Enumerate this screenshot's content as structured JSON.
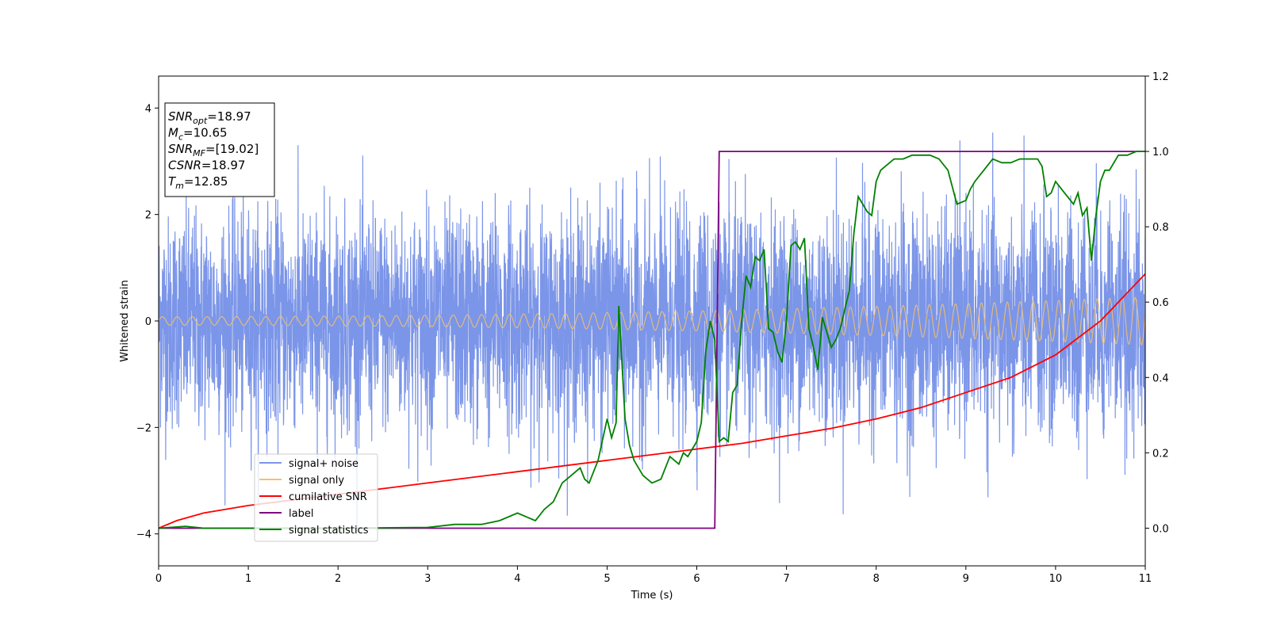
{
  "chart_data": {
    "type": "line",
    "xlabel": "Time (s)",
    "ylabel": "Whitened strain",
    "xlim": [
      0,
      11
    ],
    "ylim": [
      -4.6,
      4.6
    ],
    "y2lim": [
      -0.1,
      1.2
    ],
    "xticks": [
      "0",
      "1",
      "2",
      "3",
      "4",
      "5",
      "6",
      "7",
      "8",
      "9",
      "10",
      "11"
    ],
    "yticks": [
      "−4",
      "−2",
      "0",
      "2",
      "4"
    ],
    "y2ticks": [
      "0.0",
      "0.2",
      "0.4",
      "0.6",
      "0.8",
      "1.0",
      "1.2"
    ],
    "grid": false,
    "legend_position": "lower-left",
    "colors": {
      "signal_noise": "#7b95e8",
      "signal_only": "#f5c16c",
      "cumulative_snr": "#ff0000",
      "label": "#800080",
      "signal_statistics": "#008000"
    },
    "series": [
      {
        "name": "signal+ noise",
        "axis": "left",
        "note_style": "noise",
        "amplitude_sigma": 1.0,
        "peak_max": 4.18
      },
      {
        "name": "signal only",
        "axis": "left",
        "note_style": "chirp",
        "amplitude_start": 0.08,
        "amplitude_end": 0.45
      },
      {
        "name": "cumilative SNR",
        "axis": "right",
        "x": [
          0,
          0.2,
          0.5,
          1,
          2,
          3,
          4,
          5,
          6,
          6.5,
          7,
          7.5,
          8,
          8.5,
          9,
          9.5,
          10,
          10.5,
          11
        ],
        "y": [
          0.0,
          0.02,
          0.04,
          0.06,
          0.09,
          0.12,
          0.15,
          0.18,
          0.21,
          0.225,
          0.245,
          0.265,
          0.29,
          0.32,
          0.36,
          0.4,
          0.46,
          0.55,
          0.675
        ]
      },
      {
        "name": "label",
        "axis": "right",
        "x": [
          0,
          6.2,
          6.25,
          11
        ],
        "y": [
          0.0,
          0.0,
          1.0,
          1.0
        ]
      },
      {
        "name": "signal statistics",
        "axis": "right",
        "x": [
          0,
          0.3,
          0.5,
          1,
          2,
          3,
          3.3,
          3.6,
          3.8,
          4.0,
          4.1,
          4.2,
          4.3,
          4.4,
          4.5,
          4.6,
          4.7,
          4.75,
          4.8,
          4.9,
          5.0,
          5.05,
          5.1,
          5.13,
          5.2,
          5.25,
          5.3,
          5.4,
          5.5,
          5.6,
          5.7,
          5.8,
          5.85,
          5.9,
          6.0,
          6.05,
          6.1,
          6.15,
          6.2,
          6.25,
          6.3,
          6.35,
          6.4,
          6.45,
          6.5,
          6.55,
          6.6,
          6.65,
          6.7,
          6.75,
          6.8,
          6.85,
          6.9,
          6.95,
          7.0,
          7.05,
          7.1,
          7.15,
          7.2,
          7.25,
          7.3,
          7.35,
          7.4,
          7.45,
          7.5,
          7.55,
          7.6,
          7.65,
          7.7,
          7.75,
          7.8,
          7.85,
          7.9,
          7.95,
          8.0,
          8.05,
          8.1,
          8.2,
          8.3,
          8.4,
          8.5,
          8.6,
          8.7,
          8.8,
          8.9,
          9.0,
          9.05,
          9.1,
          9.2,
          9.3,
          9.4,
          9.5,
          9.6,
          9.7,
          9.8,
          9.85,
          9.9,
          9.95,
          10.0,
          10.1,
          10.2,
          10.25,
          10.3,
          10.35,
          10.4,
          10.45,
          10.5,
          10.55,
          10.6,
          10.7,
          10.8,
          10.9,
          11.0
        ],
        "y": [
          0.0,
          0.005,
          0.0,
          0.0,
          0.0,
          0.002,
          0.01,
          0.01,
          0.02,
          0.04,
          0.03,
          0.02,
          0.05,
          0.07,
          0.12,
          0.14,
          0.16,
          0.13,
          0.12,
          0.18,
          0.29,
          0.24,
          0.28,
          0.59,
          0.29,
          0.22,
          0.18,
          0.14,
          0.12,
          0.13,
          0.19,
          0.17,
          0.2,
          0.19,
          0.23,
          0.28,
          0.47,
          0.55,
          0.5,
          0.23,
          0.24,
          0.23,
          0.36,
          0.38,
          0.55,
          0.67,
          0.64,
          0.72,
          0.71,
          0.74,
          0.53,
          0.52,
          0.47,
          0.44,
          0.55,
          0.75,
          0.76,
          0.74,
          0.77,
          0.53,
          0.48,
          0.42,
          0.56,
          0.52,
          0.48,
          0.5,
          0.53,
          0.58,
          0.63,
          0.78,
          0.88,
          0.86,
          0.84,
          0.83,
          0.92,
          0.95,
          0.96,
          0.98,
          0.98,
          0.99,
          0.99,
          0.99,
          0.98,
          0.95,
          0.86,
          0.87,
          0.9,
          0.92,
          0.95,
          0.98,
          0.97,
          0.97,
          0.98,
          0.98,
          0.98,
          0.96,
          0.88,
          0.89,
          0.92,
          0.89,
          0.86,
          0.89,
          0.83,
          0.85,
          0.71,
          0.83,
          0.92,
          0.95,
          0.95,
          0.99,
          0.99,
          1.0,
          1.0
        ]
      }
    ],
    "legend": [
      "signal+ noise",
      "signal only",
      "cumilative SNR",
      "label",
      "signal statistics"
    ],
    "info_box": {
      "lines": [
        {
          "sym": "SNR",
          "sub": "opt",
          "val": "=18.97"
        },
        {
          "sym": "M",
          "sub": "c",
          "val": "=10.65"
        },
        {
          "sym": "SNR",
          "sub": "MF",
          "val": "=[19.02]"
        },
        {
          "sym": "CSNR",
          "sub": "",
          "val": "=18.97"
        },
        {
          "sym": "T",
          "sub": "m",
          "val": "=12.85"
        }
      ]
    }
  }
}
